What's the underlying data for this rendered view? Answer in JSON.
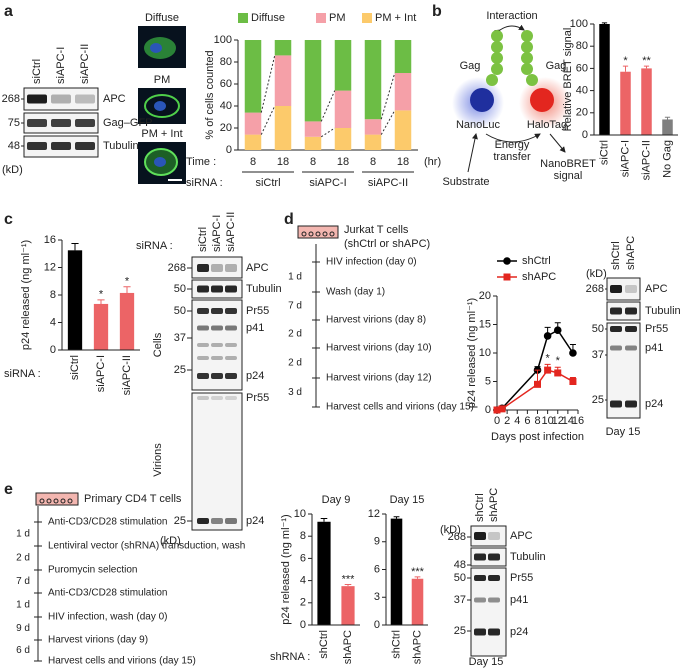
{
  "a": {
    "label": "a",
    "blot": {
      "lanes": [
        "siCtrl",
        "siAPC-I",
        "siAPC-II"
      ],
      "unit": "(kD)",
      "markers": [
        268,
        75,
        48
      ],
      "bands": [
        "APC",
        "Gag–GFP",
        "Tubulin"
      ]
    },
    "micrographs": [
      "Diffuse",
      "PM",
      "PM + Int"
    ],
    "chart": {
      "type": "stacked_bar",
      "ylabel": "% of cells counted",
      "ylim": [
        0,
        100
      ],
      "yticks": [
        0,
        20,
        40,
        60,
        80,
        100
      ],
      "category_title": "Time :",
      "category_unit": "(hr)",
      "categories": [
        "8",
        "18",
        "8",
        "18",
        "8",
        "18"
      ],
      "group_title": "siRNA :",
      "groups": [
        "siCtrl",
        "siAPC-I",
        "siAPC-II"
      ],
      "series": [
        {
          "name": "Diffuse",
          "color": "#6cbd45",
          "values": [
            66,
            14,
            74,
            46,
            72,
            30
          ]
        },
        {
          "name": "PM",
          "color": "#f5a0a8",
          "values": [
            20,
            46,
            14,
            34,
            14,
            34
          ]
        },
        {
          "name": "PM + Int",
          "color": "#fcca6b",
          "values": [
            14,
            40,
            12,
            20,
            14,
            36
          ]
        }
      ]
    }
  },
  "b": {
    "label": "b",
    "diagram": {
      "interaction": "Interaction",
      "gag_left": "Gag",
      "gag_right": "Gag",
      "donor": "NanoLuc",
      "acceptor": "HaloTag",
      "transfer": [
        "Energy",
        "transfer"
      ],
      "substrate": "Substrate",
      "signal": [
        "NanoBRET",
        "signal"
      ]
    },
    "chart": {
      "type": "bar",
      "ylabel": "Relative BRET signal",
      "ylim": [
        0,
        100
      ],
      "yticks": [
        0,
        20,
        40,
        60,
        80,
        100
      ],
      "categories": [
        "siCtrl",
        "siAPC-I",
        "siAPC-II",
        "No Gag"
      ],
      "values": [
        100,
        57,
        60,
        14
      ],
      "errors": [
        1,
        5,
        2,
        2
      ],
      "colors": [
        "#000000",
        "#ec6466",
        "#ec6466",
        "#7f7f7f"
      ],
      "significance": [
        null,
        "*",
        "**",
        null
      ]
    }
  },
  "c": {
    "label": "c",
    "chart": {
      "type": "bar",
      "ylabel": "p24 released (ng ml⁻¹)",
      "ylim": [
        0,
        16
      ],
      "yticks": [
        0,
        4,
        8,
        12,
        16
      ],
      "category_title": "siRNA :",
      "categories": [
        "siCtrl",
        "siAPC-I",
        "siAPC-II"
      ],
      "values": [
        14.5,
        6.7,
        8.3
      ],
      "errors": [
        1.0,
        0.6,
        0.9
      ],
      "colors": [
        "#000000",
        "#ec6466",
        "#ec6466"
      ],
      "significance": [
        null,
        "*",
        "*"
      ]
    },
    "blot": {
      "lane_title": "siRNA :",
      "lanes": [
        "siCtrl",
        "siAPC-I",
        "siAPC-II"
      ],
      "unit": "(kD)",
      "markers": [
        268,
        50,
        50,
        37,
        25,
        25
      ],
      "bands": [
        "APC",
        "Tubulin",
        "Pr55",
        "p41",
        "p24",
        "Pr55",
        "p24"
      ],
      "fractions": [
        "Cells",
        "Virions"
      ]
    }
  },
  "d": {
    "label": "d",
    "timeline": {
      "header": [
        "Jurkat T cells",
        "(shCtrl or shAPC)"
      ],
      "steps": [
        "HIV infection (day 0)",
        "Wash (day 1)",
        "Harvest virions (day 8)",
        "Harvest virions (day 10)",
        "Harvest virions (day 12)",
        "Harvest cells and virions (day 15)"
      ],
      "intervals": [
        "1 d",
        "7 d",
        "2 d",
        "2 d",
        "3 d"
      ]
    },
    "chart": {
      "type": "line",
      "ylabel": "p24 released (ng ml⁻¹)",
      "xlabel": "Days post infection",
      "xlim": [
        0,
        16
      ],
      "xticks": [
        0,
        2,
        4,
        6,
        8,
        10,
        12,
        14,
        16
      ],
      "ylim": [
        0,
        20
      ],
      "yticks": [
        0,
        5,
        10,
        15,
        20
      ],
      "x": [
        0,
        1,
        8,
        10,
        12,
        15
      ],
      "series": [
        {
          "name": "shCtrl",
          "color": "#000000",
          "marker": "circle",
          "values": [
            0,
            0.3,
            7,
            13,
            14,
            10
          ],
          "errors": [
            0,
            0.2,
            0.6,
            1.5,
            1.3,
            1.5
          ]
        },
        {
          "name": "shAPC",
          "color": "#e3261f",
          "marker": "square",
          "values": [
            0,
            0.2,
            4.5,
            7,
            6.5,
            5
          ],
          "errors": [
            0,
            0.1,
            2.5,
            1,
            1,
            0.7
          ]
        }
      ],
      "significance": [
        null,
        null,
        null,
        "*",
        "*",
        null
      ]
    },
    "blot": {
      "lanes": [
        "shCtrl",
        "shAPC"
      ],
      "unit": "(kD)",
      "markers": [
        268,
        50,
        37,
        25
      ],
      "bands": [
        "APC",
        "Tubulin",
        "Pr55",
        "p41",
        "p24"
      ],
      "caption": "Day 15"
    }
  },
  "e": {
    "label": "e",
    "timeline": {
      "header": [
        "Primary CD4 T cells"
      ],
      "steps": [
        "Anti-CD3/CD28 stimulation",
        "Lentiviral vector (shRNA) transduction, wash",
        "Puromycin selection",
        "Anti-CD3/CD28 stimulation",
        "HIV infection, wash (day 0)",
        "Harvest virions (day 9)",
        "Harvest cells and virions (day 15)"
      ],
      "intervals": [
        "1 d",
        "2 d",
        "7 d",
        "1 d",
        "9 d",
        "6 d"
      ]
    },
    "charts": [
      {
        "type": "bar",
        "title": "Day 9",
        "ylabel": "p24 released (ng ml⁻¹)",
        "ylim": [
          0,
          10
        ],
        "yticks": [
          0,
          2,
          4,
          6,
          8,
          10
        ],
        "category_title": "shRNA :",
        "categories": [
          "shCtrl",
          "shAPC"
        ],
        "values": [
          9.3,
          3.5
        ],
        "errors": [
          0.3,
          0.15
        ],
        "colors": [
          "#000000",
          "#ec6466"
        ],
        "significance": [
          null,
          "***"
        ]
      },
      {
        "type": "bar",
        "title": "Day 15",
        "ylim": [
          0,
          12
        ],
        "yticks": [
          0,
          3,
          6,
          9,
          12
        ],
        "categories": [
          "shCtrl",
          "shAPC"
        ],
        "values": [
          11.5,
          5.0
        ],
        "errors": [
          0.2,
          0.2
        ],
        "colors": [
          "#000000",
          "#ec6466"
        ],
        "significance": [
          null,
          "***"
        ]
      }
    ],
    "blot": {
      "lanes": [
        "shCtrl",
        "shAPC"
      ],
      "unit": "(kD)",
      "markers": [
        268,
        48,
        50,
        37,
        25
      ],
      "bands": [
        "APC",
        "Tubulin",
        "Pr55",
        "p41",
        "p24"
      ],
      "caption": "Day 15"
    }
  }
}
